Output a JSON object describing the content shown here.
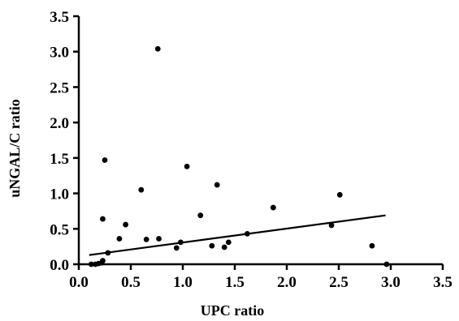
{
  "chart_data": {
    "type": "scatter",
    "title": "",
    "xlabel": "UPC ratio",
    "ylabel": "uNGAL/C ratio",
    "xlim": [
      0.0,
      3.5
    ],
    "ylim": [
      0.0,
      3.5
    ],
    "xticks": [
      "0.0",
      "0.5",
      "1.0",
      "1.5",
      "2.0",
      "2.5",
      "3.0",
      "3.5"
    ],
    "yticks": [
      "0.0",
      "0.5",
      "1.0",
      "1.5",
      "2.0",
      "2.5",
      "3.0",
      "3.5"
    ],
    "grid": false,
    "legend": "none",
    "point_color": "#000000",
    "points": [
      {
        "x": 0.12,
        "y": 0.0
      },
      {
        "x": 0.16,
        "y": 0.0
      },
      {
        "x": 0.19,
        "y": 0.01
      },
      {
        "x": 0.22,
        "y": 0.02
      },
      {
        "x": 0.23,
        "y": 0.05
      },
      {
        "x": 0.23,
        "y": 0.64
      },
      {
        "x": 0.25,
        "y": 1.47
      },
      {
        "x": 0.28,
        "y": 0.16
      },
      {
        "x": 0.39,
        "y": 0.36
      },
      {
        "x": 0.45,
        "y": 0.56
      },
      {
        "x": 0.6,
        "y": 1.05
      },
      {
        "x": 0.65,
        "y": 0.35
      },
      {
        "x": 0.76,
        "y": 3.04
      },
      {
        "x": 0.77,
        "y": 0.36
      },
      {
        "x": 0.94,
        "y": 0.23
      },
      {
        "x": 0.98,
        "y": 0.31
      },
      {
        "x": 1.04,
        "y": 1.38
      },
      {
        "x": 1.17,
        "y": 0.69
      },
      {
        "x": 1.28,
        "y": 0.26
      },
      {
        "x": 1.33,
        "y": 1.12
      },
      {
        "x": 1.4,
        "y": 0.24
      },
      {
        "x": 1.44,
        "y": 0.31
      },
      {
        "x": 1.62,
        "y": 0.43
      },
      {
        "x": 1.87,
        "y": 0.8
      },
      {
        "x": 2.43,
        "y": 0.55
      },
      {
        "x": 2.51,
        "y": 0.98
      },
      {
        "x": 2.82,
        "y": 0.26
      },
      {
        "x": 2.96,
        "y": 0.0
      }
    ],
    "regression_line": {
      "x": [
        0.1,
        2.95
      ],
      "y": [
        0.13,
        0.69
      ]
    }
  }
}
